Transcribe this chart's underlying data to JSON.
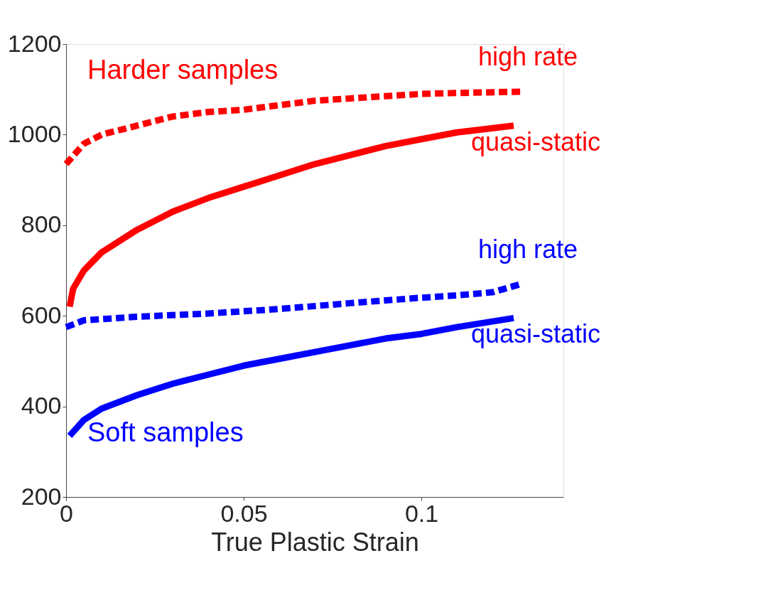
{
  "chart_data": {
    "type": "line",
    "xlabel": "True Plastic Strain",
    "xlim": [
      0,
      0.14
    ],
    "xticks": [
      0,
      0.05,
      0.1
    ],
    "ylim": [
      200,
      1200
    ],
    "yticks": [
      200,
      400,
      600,
      800,
      1000,
      1200
    ],
    "grid": false,
    "marker": "none",
    "annotations": [
      "Harder samples",
      "Soft samples"
    ],
    "series": [
      {
        "name": "high rate",
        "color": "#ff0000",
        "line_style": "dashed",
        "x": [
          0,
          0.005,
          0.01,
          0.02,
          0.03,
          0.04,
          0.05,
          0.06,
          0.07,
          0.08,
          0.09,
          0.1,
          0.11,
          0.128
        ],
        "values": [
          935,
          980,
          1000,
          1020,
          1040,
          1050,
          1055,
          1065,
          1075,
          1080,
          1085,
          1090,
          1092,
          1095
        ]
      },
      {
        "name": "quasi-static",
        "color": "#ff0000",
        "line_style": "solid",
        "x": [
          0.001,
          0.002,
          0.005,
          0.01,
          0.02,
          0.03,
          0.04,
          0.05,
          0.06,
          0.07,
          0.08,
          0.09,
          0.1,
          0.11,
          0.126
        ],
        "values": [
          620,
          660,
          700,
          740,
          790,
          830,
          860,
          885,
          910,
          935,
          955,
          975,
          990,
          1005,
          1020
        ]
      },
      {
        "name": "high rate",
        "color": "#0000ff",
        "line_style": "dashed",
        "x": [
          0,
          0.005,
          0.02,
          0.04,
          0.06,
          0.08,
          0.1,
          0.11,
          0.12,
          0.128
        ],
        "values": [
          575,
          590,
          598,
          605,
          615,
          628,
          640,
          645,
          652,
          670
        ]
      },
      {
        "name": "quasi-static",
        "color": "#0000ff",
        "line_style": "solid",
        "x": [
          0.001,
          0.005,
          0.01,
          0.02,
          0.03,
          0.04,
          0.05,
          0.06,
          0.07,
          0.08,
          0.09,
          0.1,
          0.11,
          0.126
        ],
        "values": [
          335,
          370,
          395,
          425,
          450,
          470,
          490,
          505,
          520,
          535,
          550,
          560,
          575,
          595
        ]
      }
    ]
  }
}
